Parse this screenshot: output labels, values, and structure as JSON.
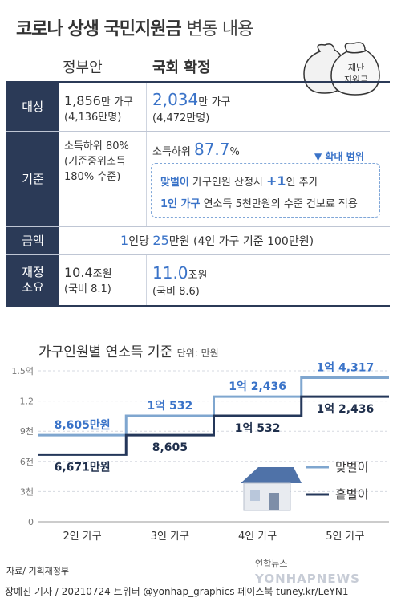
{
  "title": {
    "main": "코로나 상생 국민지원금",
    "sub": "변동 내용"
  },
  "bag_label": [
    "재난",
    "지원금"
  ],
  "columns": {
    "gov": "정부안",
    "national": "국회 확정"
  },
  "rows": {
    "target": {
      "label": "대상",
      "gov_main": "1,856",
      "gov_unit": "만 가구",
      "gov_sub": "(4,136만명)",
      "nat_main": "2,034",
      "nat_unit": "만 가구",
      "nat_sub": "(4,472만명)"
    },
    "criteria": {
      "label": "기준",
      "gov_line1": "소득하위 80%",
      "gov_line2": "(기준중위소득",
      "gov_line3": "180% 수준)",
      "nat_prefix": "소득하위 ",
      "nat_value": "87.7",
      "nat_suffix": "%",
      "expand_label": "▼ 확대 범위",
      "expand1_a": "맞벌이",
      "expand1_b": " 가구인원 산정시 ",
      "expand1_c": "+1",
      "expand1_d": "인 추가",
      "expand2_a": "1인 가구",
      "expand2_b": " 연소득 5천만원의 수준 건보료 적용"
    },
    "amount": {
      "label": "금액",
      "text_a": "1",
      "text_b": "인당 ",
      "text_c": "25",
      "text_d": "만원 (4인 가구 기준 100만원)"
    },
    "finance": {
      "label_l1": "재정",
      "label_l2": "소요",
      "gov_main": "10.4",
      "gov_unit": "조원",
      "gov_sub": "(국비 8.1)",
      "nat_main": "11.0",
      "nat_unit": "조원",
      "nat_sub": "(국비 8.6)"
    }
  },
  "chart_title": "가구인원별 연소득 기준",
  "chart_unit": "단위: 만원",
  "chart_data": {
    "type": "line",
    "step": true,
    "categories": [
      "2인 가구",
      "3인 가구",
      "4인 가구",
      "5인 가구"
    ],
    "y_ticks": [
      "0",
      "3천",
      "6천",
      "9천",
      "1.2",
      "1.5억"
    ],
    "ylim": [
      0,
      15000
    ],
    "series": [
      {
        "name": "맞벌이",
        "color": "#7fa6cf",
        "values": [
          8605,
          10532,
          12436,
          14317
        ],
        "labels": [
          "8,605만원",
          "1억 532",
          "1억 2,436",
          "1억 4,317"
        ]
      },
      {
        "name": "홑벌이",
        "color": "#24375a",
        "values": [
          6671,
          8605,
          10532,
          12436
        ],
        "labels": [
          "6,671만원",
          "8,605",
          "1억 532",
          "1억 2,436"
        ]
      }
    ]
  },
  "footer": {
    "source": "자료/ 기획재정부",
    "credit": "장예진 기자 / 20210724 트위터 @yonhap_graphics  페이스북 tuney.kr/LeYN1",
    "brand": "연합뉴스",
    "brand_en": "YONHAPNEWS"
  }
}
